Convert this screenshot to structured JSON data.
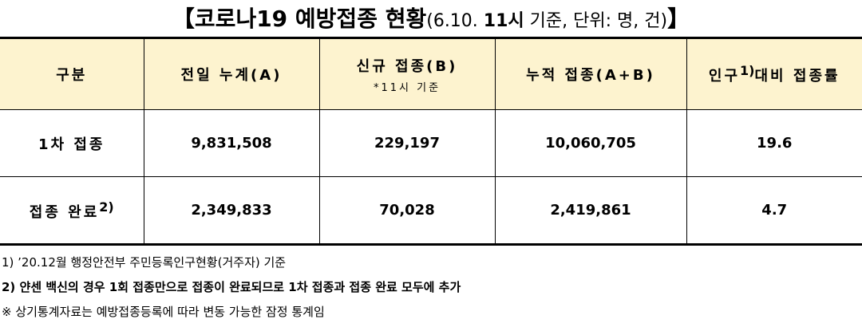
{
  "title": {
    "main": "【코로나19 예방접종 현황",
    "detail_a": "(6.10. ",
    "time": "11시",
    "detail_b": " 기준, 단위: 명, 건)",
    "close": "】"
  },
  "table": {
    "header": [
      "구분",
      "전일 누계(A)",
      "신규 접종(B)",
      "누적 접종(A+B)",
      "대비 접종률"
    ],
    "header_note": "*11시 기준",
    "header_prefix": "인구",
    "header_sup": "1)",
    "rows": [
      [
        "1차 접종",
        "9,831,508",
        "229,197",
        "10,060,705",
        "19.6"
      ],
      [
        "접종 완료",
        "2,349,833",
        "70,028",
        "2,419,861",
        "4.7"
      ]
    ],
    "row_sup": "2)"
  },
  "notes": [
    "1) ’20.12월 행정안전부 주민등록인구현황(거주자) 기준",
    "2)  얀센 백신의 경우 1회 접종만으로 접종이 완료되므로 1차 접종과 접종 완료 모두에 추가",
    "※ 상기통계자료는 예방접종등록에 따라 변동 가능한 잠정 통계임"
  ]
}
